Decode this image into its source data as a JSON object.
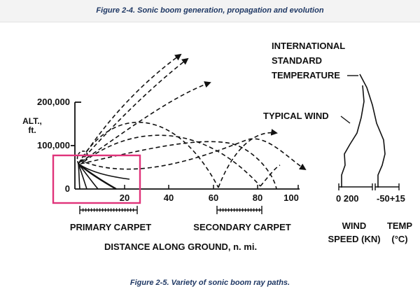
{
  "header": {
    "title": "Figure 2-4.  Sonic boom generation, propagation and evolution"
  },
  "caption": {
    "text": "Figure 2-5.  Variety of sonic boom ray paths."
  },
  "diagram": {
    "y_axis": {
      "label_line1": "ALT.,",
      "label_line2": "ft.",
      "ticks": [
        "200,000",
        "100,000",
        "0"
      ]
    },
    "x_axis": {
      "ticks": [
        "20",
        "40",
        "60",
        "80",
        "100"
      ],
      "label": "DISTANCE ALONG GROUND, n. mi."
    },
    "carpets": {
      "primary": "PRIMARY CARPET",
      "secondary": "SECONDARY CARPET"
    },
    "profiles": {
      "title_line1": "INTERNATIONAL",
      "title_line2": "STANDARD",
      "title_line3": "TEMPERATURE",
      "wind_callout": "TYPICAL WIND",
      "wind_scale": "0  200",
      "temp_scale": "-50+15",
      "wind_label_line1": "WIND",
      "wind_label_line2": "SPEED (KN)",
      "temp_label_line1": "TEMP",
      "temp_label_line2": "(°C)"
    },
    "highlight_color": "#e0337a",
    "ink_color": "#111111"
  }
}
